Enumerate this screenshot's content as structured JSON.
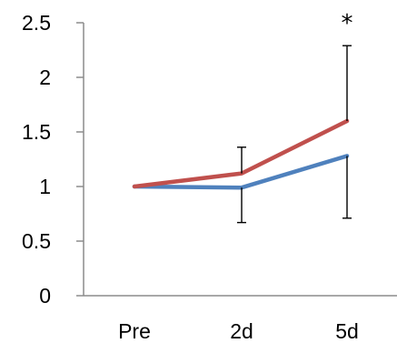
{
  "chart_data": {
    "type": "line",
    "categories": [
      "Pre",
      "2d",
      "5d"
    ],
    "ylim": [
      0,
      2.5
    ],
    "y_ticks": [
      0,
      0.5,
      1,
      1.5,
      2,
      2.5
    ],
    "y_tick_labels": [
      "0",
      "0.5",
      "1",
      "1.5",
      "2",
      "2.5"
    ],
    "grid": false,
    "legend": "none",
    "series": [
      {
        "color": "#4f81bd",
        "values": [
          1.0,
          0.99,
          1.28
        ],
        "error_lower": [
          null,
          0.67,
          0.71
        ]
      },
      {
        "color": "#c0504d",
        "values": [
          1.0,
          1.12,
          1.6
        ],
        "error_upper": [
          null,
          1.36,
          2.29
        ]
      }
    ],
    "annotations": [
      {
        "category": "5d",
        "text": "*"
      }
    ]
  }
}
